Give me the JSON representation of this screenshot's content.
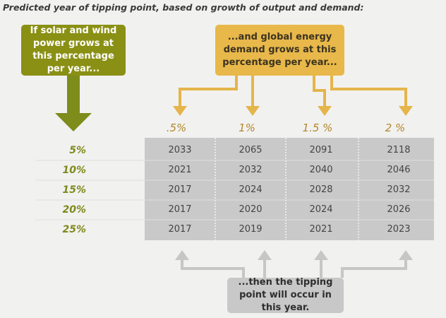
{
  "title": "Predicted year of tipping point, based on growth of output and demand:",
  "boxes": {
    "supply": "If solar and wind power grows at this percentage per year...",
    "demand": "...and global energy demand grows at this percentage per year...",
    "result": "...then the tipping point will occur in this year."
  },
  "table": {
    "columns": [
      ".5%",
      "1%",
      "1.5 %",
      "2 %"
    ],
    "row_labels": [
      "5%",
      "10%",
      "15%",
      "20%",
      "25%"
    ],
    "rows": [
      [
        2033,
        2065,
        2091,
        2118
      ],
      [
        2021,
        2032,
        2040,
        2046
      ],
      [
        2017,
        2024,
        2028,
        2032
      ],
      [
        2017,
        2020,
        2024,
        2026
      ],
      [
        2017,
        2019,
        2021,
        2023
      ]
    ]
  }
}
